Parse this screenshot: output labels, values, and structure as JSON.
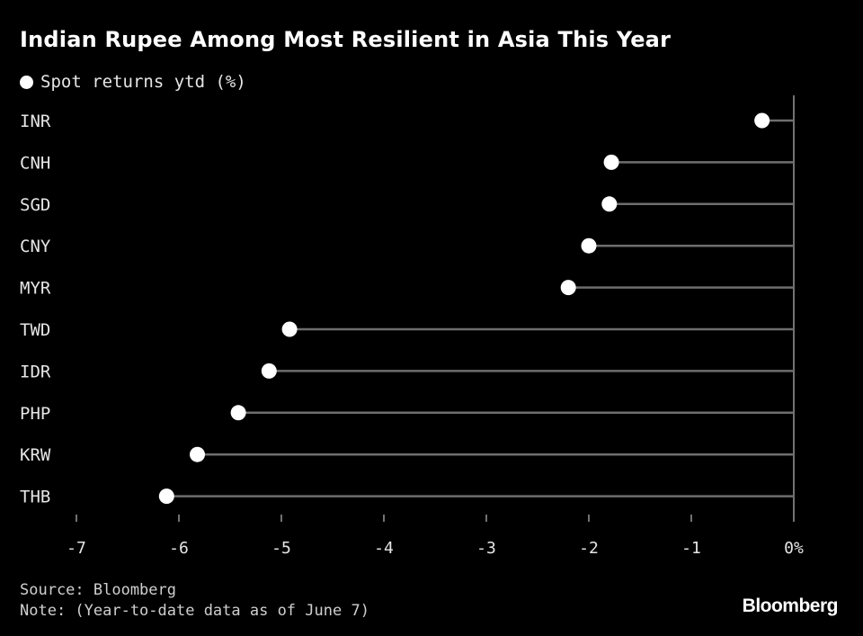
{
  "chart_data": {
    "type": "dot",
    "title": "Indian Rupee Among Most Resilient in Asia This Year",
    "legend": {
      "label": "Spot returns ytd (%)",
      "position": "top-left"
    },
    "categories": [
      "INR",
      "CNH",
      "SGD",
      "CNY",
      "MYR",
      "TWD",
      "IDR",
      "PHP",
      "KRW",
      "THB"
    ],
    "series": [
      {
        "name": "Spot returns ytd (%)",
        "values": [
          -0.31,
          -1.78,
          -1.8,
          -2.0,
          -2.2,
          -4.92,
          -5.12,
          -5.42,
          -5.82,
          -6.12
        ]
      }
    ],
    "xlim": [
      -7,
      0
    ],
    "xticks": [
      -7,
      -6,
      -5,
      -4,
      -3,
      -2,
      -1,
      0
    ],
    "xtick_labels": [
      "-7",
      "-6",
      "-5",
      "-4",
      "-3",
      "-2",
      "-1",
      "0%"
    ],
    "colors": {
      "dot": "#ffffff",
      "stem": "#6e6e6e",
      "axis": "#bdbdbd",
      "background": "#000000"
    }
  },
  "footer": {
    "source": "Source: Bloomberg",
    "note": "Note: (Year-to-date data as of June 7)"
  },
  "brand": "Bloomberg"
}
